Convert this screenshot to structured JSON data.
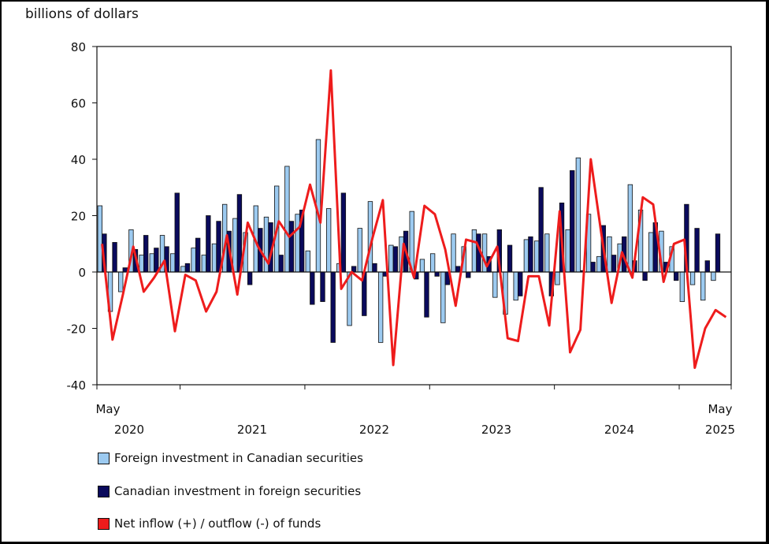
{
  "chart_data": {
    "type": "bar",
    "ylabel": "billions of dollars",
    "ylim": [
      -40,
      80
    ],
    "yticks": [
      80,
      60,
      40,
      20,
      0,
      -20,
      -40
    ],
    "x_start_label": "May",
    "x_end_label": "May",
    "year_labels": [
      "2020",
      "2021",
      "2022",
      "2023",
      "2024",
      "2025"
    ],
    "x": [
      "2020-05",
      "2020-06",
      "2020-07",
      "2020-08",
      "2020-09",
      "2020-10",
      "2020-11",
      "2020-12",
      "2021-01",
      "2021-02",
      "2021-03",
      "2021-04",
      "2021-05",
      "2021-06",
      "2021-07",
      "2021-08",
      "2021-09",
      "2021-10",
      "2021-11",
      "2021-12",
      "2022-01",
      "2022-02",
      "2022-03",
      "2022-04",
      "2022-05",
      "2022-06",
      "2022-07",
      "2022-08",
      "2022-09",
      "2022-10",
      "2022-11",
      "2022-12",
      "2023-01",
      "2023-02",
      "2023-03",
      "2023-04",
      "2023-05",
      "2023-06",
      "2023-07",
      "2023-08",
      "2023-09",
      "2023-10",
      "2023-11",
      "2023-12",
      "2024-01",
      "2024-02",
      "2024-03",
      "2024-04",
      "2024-05",
      "2024-06",
      "2024-07",
      "2024-08",
      "2024-09",
      "2024-10",
      "2024-11",
      "2024-12",
      "2025-01",
      "2025-02",
      "2025-03",
      "2025-04",
      "2025-05"
    ],
    "series": [
      {
        "name": "Foreign investment in Canadian securities",
        "color": "#9ccaf0",
        "values": [
          23.5,
          -14,
          -7,
          15,
          6,
          6.5,
          13,
          6.5,
          2,
          8.5,
          6,
          10,
          24,
          19,
          14,
          23.5,
          19.5,
          30.5,
          37.5,
          20.5,
          7.5,
          47,
          22.5,
          3,
          -19,
          15.5,
          25,
          -25,
          9.5,
          12.5,
          21.5,
          4.5,
          6.5,
          -18,
          13.5,
          9,
          15,
          13.5,
          -9,
          -15,
          -10,
          11.5,
          11,
          13.5,
          -4.5,
          15,
          40.5,
          20.5,
          5.5,
          12.5,
          10,
          31,
          22,
          14,
          14.5,
          9,
          -10.5,
          -4.5,
          -10,
          -3,
          0
        ]
      },
      {
        "name": "Canadian investment in foreign securities",
        "color": "#0a0a5c",
        "values": [
          13.5,
          10.5,
          1.5,
          8,
          13,
          8.5,
          9,
          28,
          3,
          12,
          20,
          18,
          14.5,
          27.5,
          -4.5,
          15.5,
          17.5,
          6,
          18,
          22,
          -11.5,
          -10.5,
          -25,
          28,
          2,
          -15.5,
          3,
          -1.5,
          9,
          14.5,
          -2.5,
          -16,
          -1.5,
          -4.5,
          2,
          -2,
          13.5,
          5.5,
          15,
          9.5,
          -8.5,
          12.5,
          30,
          -8.5,
          24.5,
          36,
          0.5,
          3.5,
          16.5,
          6,
          12.5,
          4,
          -3,
          17.5,
          3.5,
          -3,
          24,
          15.5,
          4,
          13.5,
          0
        ]
      },
      {
        "name": "Net inflow (+) / outflow (-) of funds",
        "color": "#ee1c1c",
        "values": [
          10,
          -24,
          -8,
          9,
          -7,
          -2,
          4,
          -21,
          -1,
          -3,
          -14,
          -7,
          13,
          -8,
          17.5,
          9,
          3,
          18,
          12.5,
          16,
          31,
          17.5,
          71.5,
          -6,
          0,
          -3,
          12,
          25.5,
          -33,
          10,
          -2,
          23.5,
          20.5,
          8,
          -12,
          11.5,
          10.5,
          2,
          9,
          -23.5,
          -24.5,
          -1.5,
          -1.5,
          -19,
          21.5,
          -28.5,
          -20.5,
          40,
          14,
          -11,
          7,
          -2,
          26.5,
          24,
          -3.5,
          10,
          11.5,
          -34,
          -20,
          -13.5,
          -16
        ]
      }
    ]
  }
}
